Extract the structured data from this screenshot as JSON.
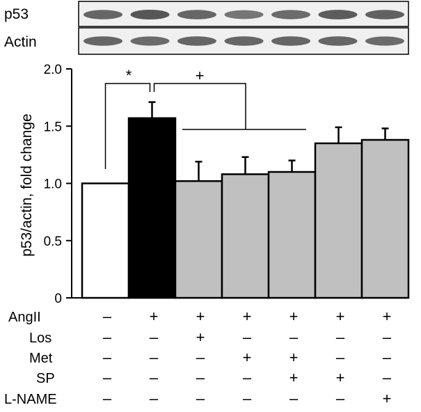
{
  "blot": {
    "labels": [
      "p53",
      "Actin"
    ],
    "band_intensity": {
      "p53": [
        0.85,
        1.0,
        0.85,
        0.7,
        0.8,
        0.95,
        0.9
      ],
      "Actin": [
        0.85,
        0.8,
        0.85,
        0.85,
        0.85,
        0.85,
        0.8
      ]
    }
  },
  "chart_data": {
    "type": "bar",
    "ylabel": "p53/actin, fold change",
    "ylim": [
      0,
      2.0
    ],
    "yticks": [
      0,
      0.5,
      1.0,
      1.5,
      2.0
    ],
    "ytick_labels": [
      "0",
      "0.5",
      "1.0",
      "1.5",
      "2.0"
    ],
    "values": [
      1.0,
      1.57,
      1.02,
      1.08,
      1.1,
      1.35,
      1.38
    ],
    "errors": [
      0,
      0.14,
      0.17,
      0.15,
      0.1,
      0.14,
      0.1
    ],
    "colors": [
      "#ffffff",
      "#000000",
      "#c0c0c0",
      "#c0c0c0",
      "#c0c0c0",
      "#c0c0c0",
      "#c0c0c0"
    ],
    "significance": [
      {
        "symbol": "*",
        "from": 0,
        "to": 1
      },
      {
        "symbol": "+",
        "from": 1,
        "to": "2-4"
      }
    ],
    "treatment_table": [
      {
        "label": "AngII",
        "values": [
          "–",
          "+",
          "+",
          "+",
          "+",
          "+",
          "+"
        ]
      },
      {
        "label": "Los",
        "values": [
          "–",
          "–",
          "+",
          "–",
          "–",
          "–",
          "–"
        ]
      },
      {
        "label": "Met",
        "values": [
          "–",
          "–",
          "–",
          "+",
          "+",
          "–",
          "–"
        ]
      },
      {
        "label": "SP",
        "values": [
          "–",
          "–",
          "–",
          "–",
          "+",
          "+",
          "–"
        ]
      },
      {
        "label": "L-NAME",
        "values": [
          "–",
          "–",
          "–",
          "–",
          "–",
          "–",
          "+"
        ]
      }
    ]
  }
}
